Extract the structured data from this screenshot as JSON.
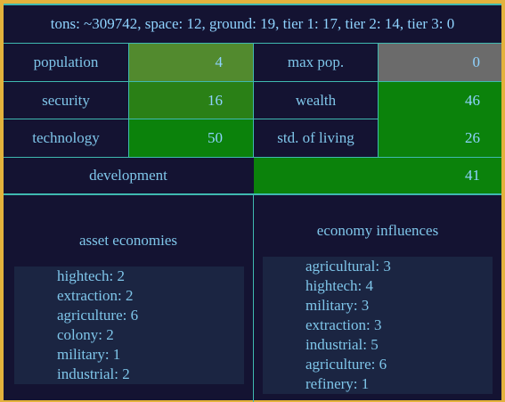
{
  "summary": "tons: ~309742, space: 12, ground: 19, tier 1: 17, tier 2: 14, tier 3: 0",
  "stats": {
    "population": {
      "label": "population",
      "value": "4"
    },
    "max_pop": {
      "label": "max pop.",
      "value": "0"
    },
    "security": {
      "label": "security",
      "value": "16"
    },
    "wealth": {
      "label": "wealth",
      "value": "46"
    },
    "technology": {
      "label": "technology",
      "value": "50"
    },
    "std_living": {
      "label": "std. of living",
      "value": "26"
    },
    "development": {
      "label": "development",
      "value": "41"
    }
  },
  "colors": {
    "population_bg": "#528a2e",
    "max_pop_bg": "#6b6b6b",
    "security_bg": "#2a8016",
    "wealth_bg": "#0b820b",
    "technology_bg": "#0b820b",
    "std_living_bg": "#0b820b",
    "development_bg": "#0b820b"
  },
  "asset_economies": {
    "title": "asset economies",
    "items": [
      "hightech: 2",
      "extraction: 2",
      "agriculture: 6",
      "colony: 2",
      "military: 1",
      "industrial: 2"
    ]
  },
  "economy_influences": {
    "title": "economy influences",
    "items": [
      "agricultural: 3",
      "hightech: 4",
      "military: 3",
      "extraction: 3",
      "industrial: 5",
      "agriculture: 6",
      "refinery: 1"
    ]
  }
}
